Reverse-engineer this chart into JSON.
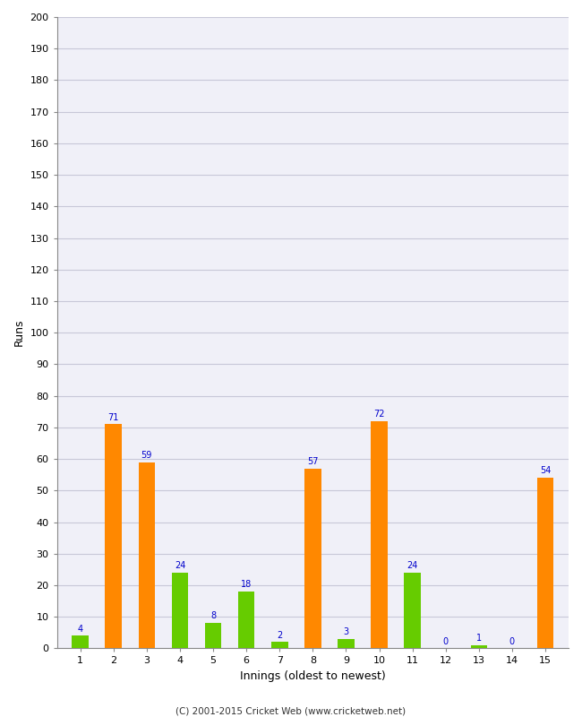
{
  "xlabel": "Innings (oldest to newest)",
  "ylabel": "Runs",
  "ylim": [
    0,
    200
  ],
  "yticks": [
    0,
    10,
    20,
    30,
    40,
    50,
    60,
    70,
    80,
    90,
    100,
    110,
    120,
    130,
    140,
    150,
    160,
    170,
    180,
    190,
    200
  ],
  "innings": [
    1,
    2,
    3,
    4,
    5,
    6,
    7,
    8,
    9,
    10,
    11,
    12,
    13,
    14,
    15
  ],
  "values": [
    4,
    71,
    59,
    24,
    8,
    18,
    2,
    57,
    3,
    72,
    24,
    0,
    1,
    0,
    54
  ],
  "colors": [
    "#66cc00",
    "#ff8800",
    "#ff8800",
    "#66cc00",
    "#66cc00",
    "#66cc00",
    "#66cc00",
    "#ff8800",
    "#66cc00",
    "#ff8800",
    "#66cc00",
    "#66cc00",
    "#66cc00",
    "#66cc00",
    "#ff8800"
  ],
  "label_color": "#0000cc",
  "label_fontsize": 7,
  "background_color": "#ffffff",
  "plot_bg_color": "#f0f0f8",
  "grid_color": "#c8c8d8",
  "bar_width": 0.5,
  "footer": "(C) 2001-2015 Cricket Web (www.cricketweb.net)"
}
